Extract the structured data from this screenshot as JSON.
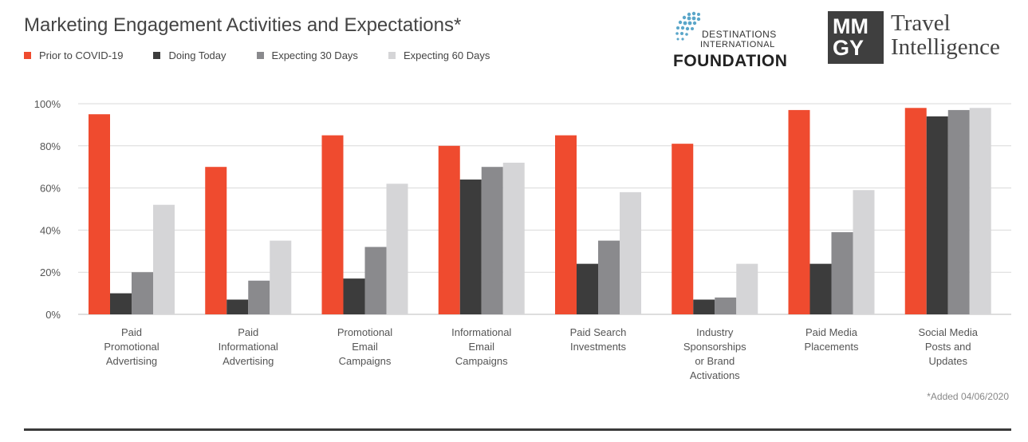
{
  "header": {
    "title": "Marketing Engagement Activities and Expectations*"
  },
  "logos": {
    "destinations_line1": "DESTINATIONS",
    "destinations_line2": "INTERNATIONAL",
    "destinations_line3": "FOUNDATION",
    "mmgy_line1": "MM",
    "mmgy_line2": "GY",
    "travel": "Travel",
    "intelligence": "Intelligence"
  },
  "footnote": "*Added 04/06/2020",
  "chart_data": {
    "type": "bar",
    "title": "Marketing Engagement Activities and Expectations*",
    "xlabel": "",
    "ylabel": "",
    "ylim": [
      0,
      100
    ],
    "yticks": [
      "0%",
      "20%",
      "40%",
      "60%",
      "80%",
      "100%"
    ],
    "grid": true,
    "legend_position": "top-left",
    "categories": [
      [
        "Paid",
        "Promotional",
        "Advertising"
      ],
      [
        "Paid",
        "Informational",
        "Advertising"
      ],
      [
        "Promotional",
        "Email",
        "Campaigns"
      ],
      [
        "Informational",
        "Email",
        "Campaigns"
      ],
      [
        "Paid Search",
        "Investments"
      ],
      [
        "Industry",
        "Sponsorships",
        "or Brand",
        "Activations"
      ],
      [
        "Paid Media",
        "Placements"
      ],
      [
        "Social Media",
        "Posts and",
        "Updates"
      ]
    ],
    "series": [
      {
        "name": "Prior to COVID-19",
        "color": "#ef4b2f",
        "values": [
          95,
          70,
          85,
          80,
          85,
          81,
          97,
          98
        ]
      },
      {
        "name": "Doing Today",
        "color": "#3c3c3c",
        "values": [
          10,
          7,
          17,
          64,
          24,
          7,
          24,
          94
        ]
      },
      {
        "name": "Expecting 30 Days",
        "color": "#8a8a8d",
        "values": [
          20,
          16,
          32,
          70,
          35,
          8,
          39,
          97
        ]
      },
      {
        "name": "Expecting 60 Days",
        "color": "#d5d5d7",
        "values": [
          52,
          35,
          62,
          72,
          58,
          24,
          59,
          98
        ]
      }
    ]
  }
}
